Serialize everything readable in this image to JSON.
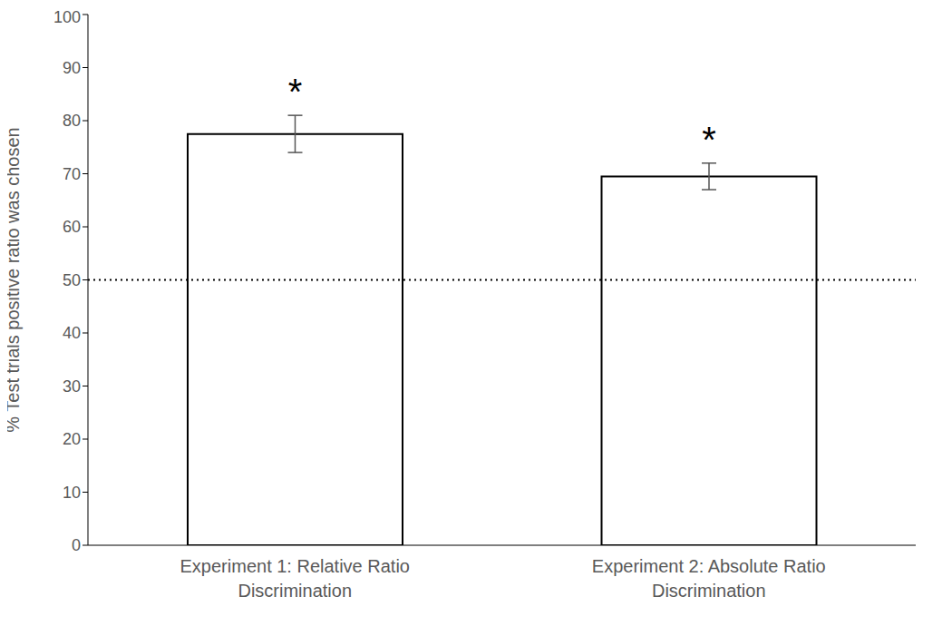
{
  "chart_data": {
    "type": "bar",
    "categories": [
      "Experiment 1: Relative Ratio Discrimination",
      "Experiment 2: Absolute Ratio Discrimination"
    ],
    "values": [
      77.5,
      69.5
    ],
    "errors": [
      3.5,
      2.5
    ],
    "annotations": [
      "*",
      "*"
    ],
    "reference_line": 50,
    "y_label": "% Test trials positive ratio was chosen",
    "ylim": [
      0,
      100
    ],
    "yticks": [
      0,
      10,
      20,
      30,
      40,
      50,
      60,
      70,
      80,
      90,
      100
    ],
    "color": "#ffffff",
    "grid": false
  }
}
